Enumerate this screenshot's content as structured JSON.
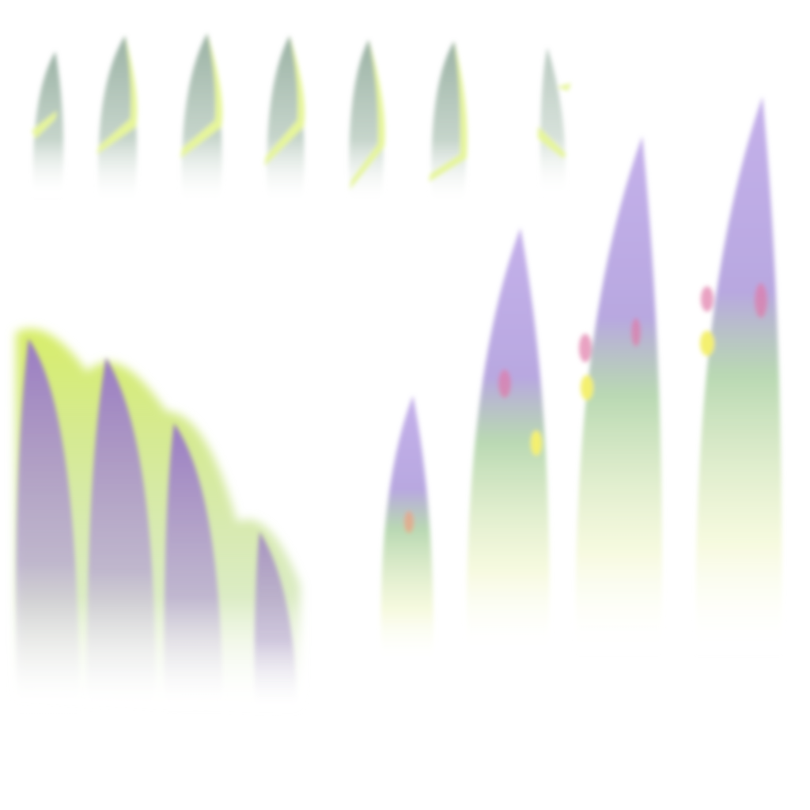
{
  "sprite_sheet": {
    "background": "#ffffff",
    "colors": {
      "leaf_grey": "#8fa99a",
      "leaf_edge": "#e6f59a",
      "purple": "#9a7cc4",
      "light_purple": "#c4b0ea",
      "green": "#8fc08a",
      "yellow_green": "#d8ee6a",
      "pink": "#e07aa8",
      "yellow": "#f4f070"
    },
    "top_row_sprite_count": 7,
    "growth_stage_count": 4
  }
}
